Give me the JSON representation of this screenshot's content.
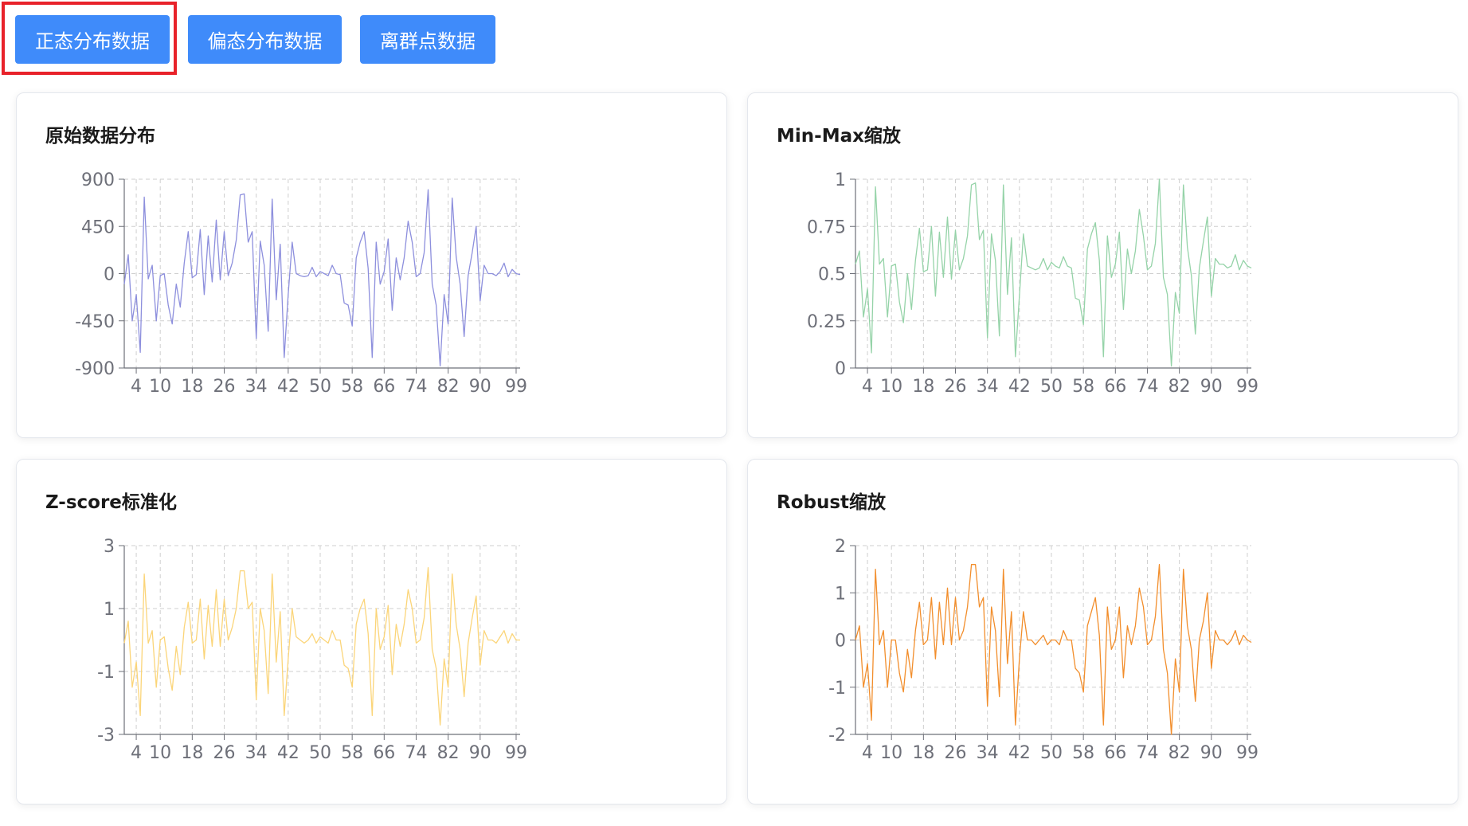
{
  "toolbar": {
    "buttons": [
      {
        "label": "正态分布数据",
        "active": true
      },
      {
        "label": "偏态分布数据",
        "active": false
      },
      {
        "label": "离群点数据",
        "active": false
      }
    ],
    "button_color": "#3f8bfa",
    "highlight_color": "#e8222a"
  },
  "chart_data": [
    {
      "type": "line",
      "title": "原始数据分布",
      "color": "#8d8fdd",
      "ylim": [
        -900,
        900
      ],
      "yticks": [
        "900",
        "450",
        "0",
        "-450",
        "-900"
      ],
      "xlim": [
        1,
        100
      ],
      "xticks": [
        "4",
        "10",
        "18",
        "26",
        "34",
        "42",
        "50",
        "58",
        "66",
        "74",
        "82",
        "90",
        "99"
      ],
      "grid": true,
      "x": [
        1,
        2,
        3,
        4,
        5,
        6,
        7,
        8,
        9,
        10,
        11,
        12,
        13,
        14,
        15,
        16,
        17,
        18,
        19,
        20,
        21,
        22,
        23,
        24,
        25,
        26,
        27,
        28,
        29,
        30,
        31,
        32,
        33,
        34,
        35,
        36,
        37,
        38,
        39,
        40,
        41,
        42,
        43,
        44,
        45,
        46,
        47,
        48,
        49,
        50,
        51,
        52,
        53,
        54,
        55,
        56,
        57,
        58,
        59,
        60,
        61,
        62,
        63,
        64,
        65,
        66,
        67,
        68,
        69,
        70,
        71,
        72,
        73,
        74,
        75,
        76,
        77,
        78,
        79,
        80,
        81,
        82,
        83,
        84,
        85,
        86,
        87,
        88,
        89,
        90,
        91,
        92,
        93,
        94,
        95,
        96,
        97,
        98,
        99,
        100
      ],
      "values": [
        -100,
        180,
        -450,
        -200,
        -750,
        730,
        -50,
        80,
        -450,
        -20,
        0,
        -300,
        -480,
        -100,
        -320,
        100,
        400,
        -40,
        -10,
        420,
        -200,
        360,
        -80,
        510,
        -60,
        400,
        -20,
        100,
        320,
        750,
        760,
        300,
        400,
        -620,
        310,
        80,
        -550,
        710,
        -250,
        280,
        -800,
        -200,
        300,
        0,
        -20,
        -30,
        -20,
        60,
        -30,
        20,
        0,
        -20,
        80,
        0,
        -10,
        -280,
        -300,
        -500,
        150,
        300,
        400,
        50,
        -800,
        300,
        -100,
        20,
        330,
        -350,
        150,
        -60,
        150,
        500,
        300,
        -30,
        0,
        200,
        800,
        -100,
        -300,
        -880,
        -200,
        -480,
        720,
        160,
        -100,
        -600,
        -20,
        200,
        450,
        -260,
        80,
        0,
        0,
        -20,
        20,
        100,
        -30,
        40,
        0,
        -10
      ]
    },
    {
      "type": "line",
      "title": "Min-Max缩放",
      "color": "#95d3a8",
      "ylim": [
        0,
        1
      ],
      "yticks": [
        "1",
        "0.75",
        "0.5",
        "0.25",
        "0"
      ],
      "xlim": [
        1,
        100
      ],
      "xticks": [
        "4",
        "10",
        "18",
        "26",
        "34",
        "42",
        "50",
        "58",
        "66",
        "74",
        "82",
        "90",
        "99"
      ],
      "grid": true,
      "x": [
        1,
        2,
        3,
        4,
        5,
        6,
        7,
        8,
        9,
        10,
        11,
        12,
        13,
        14,
        15,
        16,
        17,
        18,
        19,
        20,
        21,
        22,
        23,
        24,
        25,
        26,
        27,
        28,
        29,
        30,
        31,
        32,
        33,
        34,
        35,
        36,
        37,
        38,
        39,
        40,
        41,
        42,
        43,
        44,
        45,
        46,
        47,
        48,
        49,
        50,
        51,
        52,
        53,
        54,
        55,
        56,
        57,
        58,
        59,
        60,
        61,
        62,
        63,
        64,
        65,
        66,
        67,
        68,
        69,
        70,
        71,
        72,
        73,
        74,
        75,
        76,
        77,
        78,
        79,
        80,
        81,
        82,
        83,
        84,
        85,
        86,
        87,
        88,
        89,
        90,
        91,
        92,
        93,
        94,
        95,
        96,
        97,
        98,
        99,
        100
      ],
      "values": [
        0.55,
        0.62,
        0.27,
        0.42,
        0.08,
        0.96,
        0.55,
        0.58,
        0.27,
        0.54,
        0.55,
        0.35,
        0.24,
        0.5,
        0.31,
        0.57,
        0.74,
        0.51,
        0.52,
        0.75,
        0.38,
        0.72,
        0.48,
        0.8,
        0.47,
        0.73,
        0.52,
        0.58,
        0.7,
        0.97,
        0.98,
        0.68,
        0.73,
        0.16,
        0.71,
        0.57,
        0.17,
        0.97,
        0.39,
        0.69,
        0.06,
        0.38,
        0.71,
        0.54,
        0.53,
        0.52,
        0.53,
        0.58,
        0.52,
        0.56,
        0.54,
        0.53,
        0.59,
        0.54,
        0.53,
        0.37,
        0.36,
        0.23,
        0.63,
        0.71,
        0.77,
        0.57,
        0.06,
        0.7,
        0.48,
        0.55,
        0.72,
        0.31,
        0.63,
        0.5,
        0.62,
        0.84,
        0.7,
        0.52,
        0.54,
        0.66,
        1.0,
        0.48,
        0.39,
        0.01,
        0.4,
        0.29,
        0.97,
        0.64,
        0.49,
        0.18,
        0.53,
        0.67,
        0.8,
        0.38,
        0.58,
        0.55,
        0.55,
        0.53,
        0.54,
        0.6,
        0.52,
        0.57,
        0.54,
        0.53
      ]
    },
    {
      "type": "line",
      "title": "Z-score标准化",
      "color": "#fbd579",
      "ylim": [
        -3,
        3
      ],
      "yticks": [
        "3",
        "1",
        "-1",
        "-3"
      ],
      "xlim": [
        1,
        100
      ],
      "xticks": [
        "4",
        "10",
        "18",
        "26",
        "34",
        "42",
        "50",
        "58",
        "66",
        "74",
        "82",
        "90",
        "99"
      ],
      "grid": true,
      "x": [
        1,
        2,
        3,
        4,
        5,
        6,
        7,
        8,
        9,
        10,
        11,
        12,
        13,
        14,
        15,
        16,
        17,
        18,
        19,
        20,
        21,
        22,
        23,
        24,
        25,
        26,
        27,
        28,
        29,
        30,
        31,
        32,
        33,
        34,
        35,
        36,
        37,
        38,
        39,
        40,
        41,
        42,
        43,
        44,
        45,
        46,
        47,
        48,
        49,
        50,
        51,
        52,
        53,
        54,
        55,
        56,
        57,
        58,
        59,
        60,
        61,
        62,
        63,
        64,
        65,
        66,
        67,
        68,
        69,
        70,
        71,
        72,
        73,
        74,
        75,
        76,
        77,
        78,
        79,
        80,
        81,
        82,
        83,
        84,
        85,
        86,
        87,
        88,
        89,
        90,
        91,
        92,
        93,
        94,
        95,
        96,
        97,
        98,
        99,
        100
      ],
      "values": [
        -0.1,
        0.6,
        -1.5,
        -0.7,
        -2.4,
        2.1,
        -0.1,
        0.3,
        -1.5,
        0.0,
        0.1,
        -0.9,
        -1.6,
        -0.2,
        -1.1,
        0.4,
        1.2,
        -0.1,
        0.0,
        1.3,
        -0.6,
        1.1,
        -0.2,
        1.6,
        -0.2,
        1.3,
        0.0,
        0.4,
        1.0,
        2.2,
        2.2,
        1.0,
        1.2,
        -1.9,
        1.0,
        0.3,
        -1.7,
        2.1,
        -0.7,
        0.9,
        -2.4,
        -0.6,
        1.0,
        0.1,
        0.0,
        -0.1,
        0.0,
        0.2,
        -0.1,
        0.1,
        0.0,
        -0.1,
        0.3,
        0.0,
        0.0,
        -0.8,
        -0.9,
        -1.5,
        0.5,
        1.0,
        1.3,
        0.2,
        -2.4,
        1.0,
        -0.3,
        0.1,
        1.1,
        -1.1,
        0.5,
        -0.2,
        0.5,
        1.6,
        1.0,
        -0.1,
        0.0,
        0.7,
        2.3,
        -0.3,
        -0.9,
        -2.7,
        -0.6,
        -1.5,
        2.1,
        0.5,
        -0.3,
        -1.8,
        -0.1,
        0.7,
        1.4,
        -0.8,
        0.3,
        0.0,
        0.0,
        -0.1,
        0.1,
        0.3,
        -0.1,
        0.2,
        0.0,
        0.0
      ]
    },
    {
      "type": "line",
      "title": "Robust缩放",
      "color": "#f28e2c",
      "ylim": [
        -2,
        2
      ],
      "yticks": [
        "2",
        "1",
        "0",
        "-1",
        "-2"
      ],
      "xlim": [
        1,
        100
      ],
      "xticks": [
        "4",
        "10",
        "18",
        "26",
        "34",
        "42",
        "50",
        "58",
        "66",
        "74",
        "82",
        "90",
        "99"
      ],
      "grid": true,
      "x": [
        1,
        2,
        3,
        4,
        5,
        6,
        7,
        8,
        9,
        10,
        11,
        12,
        13,
        14,
        15,
        16,
        17,
        18,
        19,
        20,
        21,
        22,
        23,
        24,
        25,
        26,
        27,
        28,
        29,
        30,
        31,
        32,
        33,
        34,
        35,
        36,
        37,
        38,
        39,
        40,
        41,
        42,
        43,
        44,
        45,
        46,
        47,
        48,
        49,
        50,
        51,
        52,
        53,
        54,
        55,
        56,
        57,
        58,
        59,
        60,
        61,
        62,
        63,
        64,
        65,
        66,
        67,
        68,
        69,
        70,
        71,
        72,
        73,
        74,
        75,
        76,
        77,
        78,
        79,
        80,
        81,
        82,
        83,
        84,
        85,
        86,
        87,
        88,
        89,
        90,
        91,
        92,
        93,
        94,
        95,
        96,
        97,
        98,
        99,
        100
      ],
      "values": [
        0.0,
        0.3,
        -1.0,
        -0.5,
        -1.7,
        1.5,
        -0.1,
        0.2,
        -1.0,
        0.0,
        0.0,
        -0.7,
        -1.1,
        -0.2,
        -0.8,
        0.2,
        0.8,
        -0.1,
        0.0,
        0.9,
        -0.4,
        0.8,
        -0.1,
        1.1,
        -0.1,
        0.9,
        0.0,
        0.2,
        0.7,
        1.6,
        1.6,
        0.7,
        0.9,
        -1.4,
        0.7,
        0.2,
        -1.2,
        1.5,
        -0.5,
        0.6,
        -1.8,
        -0.4,
        0.6,
        0.0,
        0.0,
        -0.1,
        0.0,
        0.1,
        -0.1,
        0.0,
        0.0,
        -0.1,
        0.2,
        0.0,
        0.0,
        -0.6,
        -0.7,
        -1.1,
        0.3,
        0.6,
        0.9,
        0.1,
        -1.8,
        0.7,
        -0.2,
        0.0,
        0.7,
        -0.8,
        0.3,
        -0.1,
        0.3,
        1.1,
        0.7,
        -0.1,
        0.0,
        0.5,
        1.6,
        -0.2,
        -0.7,
        -2.0,
        -0.4,
        -1.1,
        1.5,
        0.3,
        -0.2,
        -1.3,
        0.0,
        0.4,
        1.0,
        -0.6,
        0.2,
        0.0,
        0.0,
        -0.1,
        0.0,
        0.2,
        -0.1,
        0.1,
        0.0,
        -0.05
      ]
    }
  ]
}
